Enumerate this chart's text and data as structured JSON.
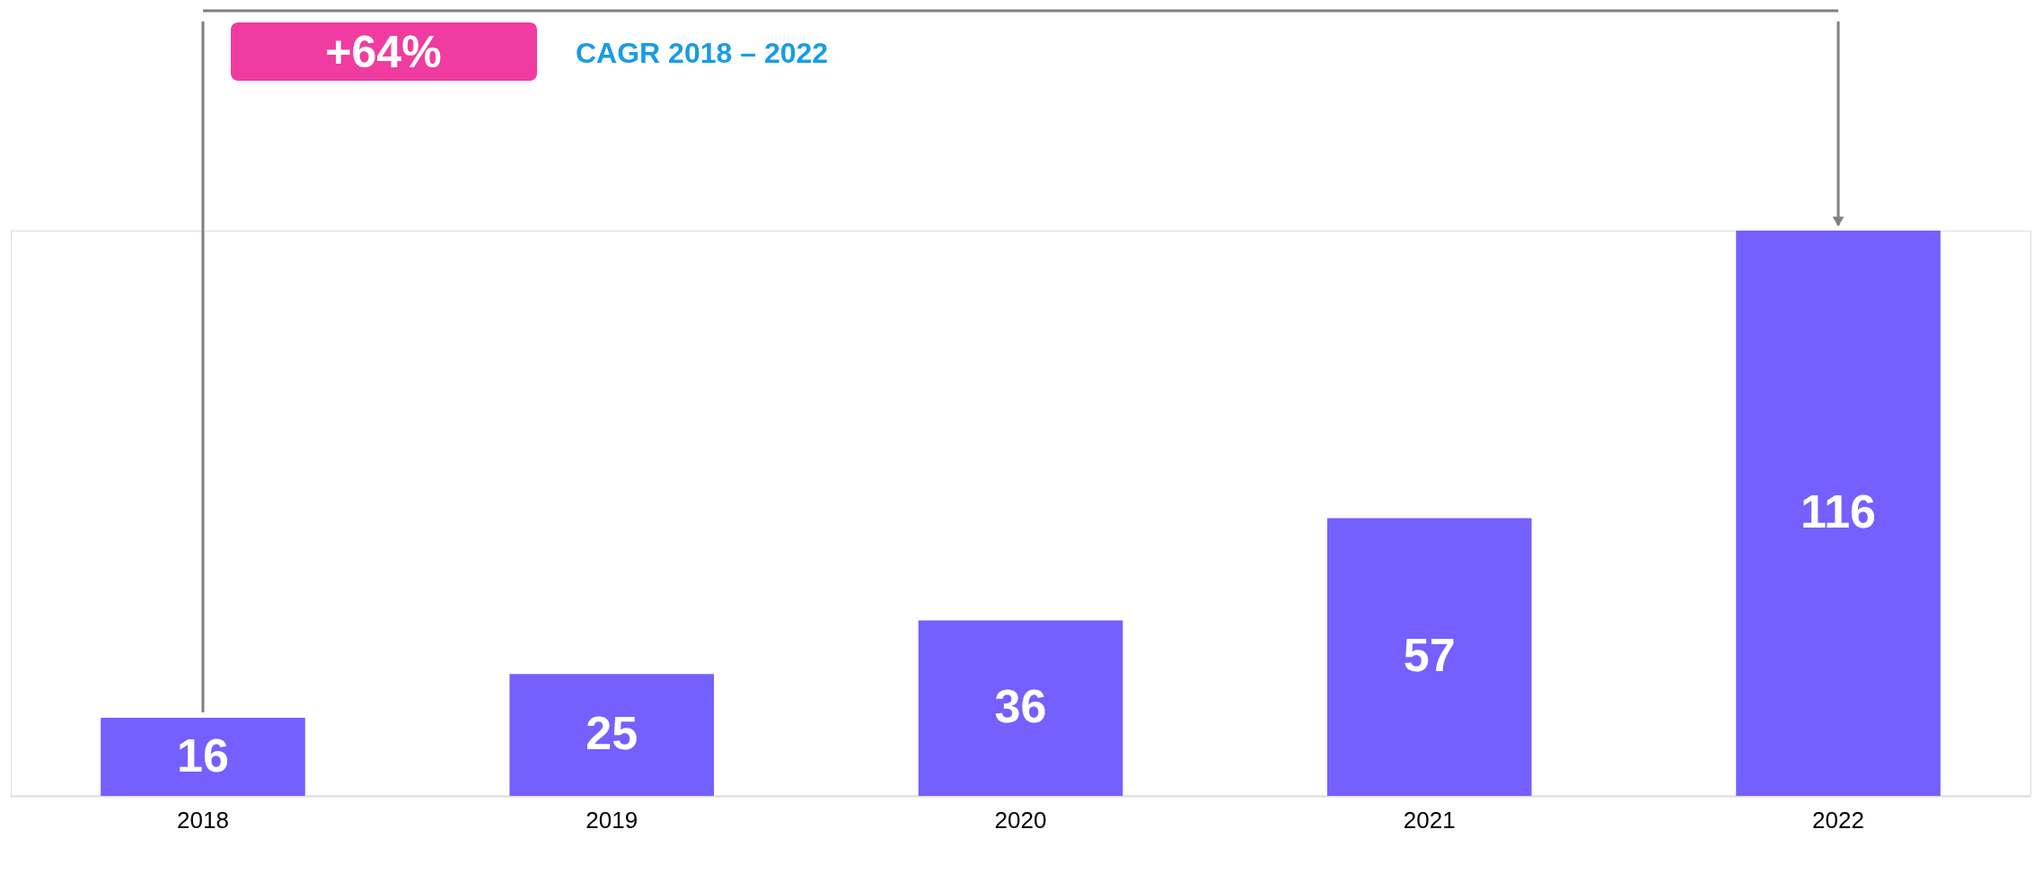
{
  "chart_data": {
    "type": "bar",
    "categories": [
      "2018",
      "2019",
      "2020",
      "2021",
      "2022"
    ],
    "values": [
      16,
      25,
      36,
      57,
      116
    ],
    "color": "#7360ff",
    "data_labels": true,
    "annotations": [
      "+64%",
      "CAGR 2018 – 2022"
    ]
  }
}
